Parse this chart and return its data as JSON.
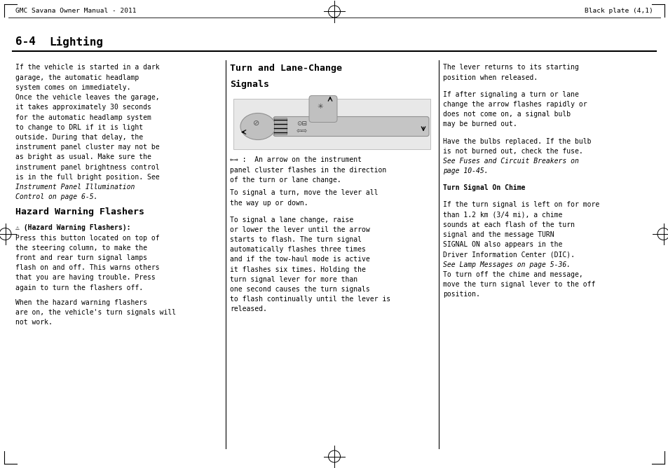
{
  "bg_color": "#ffffff",
  "page_width": 9.54,
  "page_height": 6.68,
  "dpi": 100,
  "header_left": "GMC Savana Owner Manual - 2011",
  "header_right": "Black plate (4,1)",
  "section_num": "6-4",
  "section_name": "Lighting",
  "col1_body": [
    "If the vehicle is started in a dark",
    "garage, the automatic headlamp",
    "system comes on immediately.",
    "Once the vehicle leaves the garage,",
    "it takes approximately 30 seconds",
    "for the automatic headlamp system",
    "to change to DRL if it is light",
    "outside. During that delay, the",
    "instrument panel cluster may not be",
    "as bright as usual. Make sure the",
    "instrument panel brightness control",
    "is in the full bright position. See",
    "Instrument Panel Illumination",
    "Control on page 6-5."
  ],
  "col1_italic_lines": [
    12,
    13
  ],
  "col1_section2_title": "Hazard Warning Flashers",
  "col1_section2_body": [
    "⚠ (Hazard Warning Flashers):",
    "Press this button located on top of",
    "the steering column, to make the",
    "front and rear turn signal lamps",
    "flash on and off. This warns others",
    "that you are having trouble. Press",
    "again to turn the flashers off.",
    "",
    "When the hazard warning flashers",
    "are on, the vehicle's turn signals will",
    "not work."
  ],
  "col2_title_line1": "Turn and Lane-Change",
  "col2_title_line2": "Signals",
  "col2_caption_line1": "⇐⇒ :  An arrow on the instrument",
  "col2_caption_line2": "panel cluster flashes in the direction",
  "col2_caption_line3": "of the turn or lane change.",
  "col2_body": [
    "To signal a turn, move the lever all",
    "the way up or down.",
    "",
    "To signal a lane change, raise",
    "or lower the lever until the arrow",
    "starts to flash. The turn signal",
    "automatically flashes three times",
    "and if the tow-haul mode is active",
    "it flashes six times. Holding the",
    "turn signal lever for more than",
    "one second causes the turn signals",
    "to flash continually until the lever is",
    "released."
  ],
  "col3_body": [
    "The lever returns to its starting",
    "position when released.",
    "",
    "If after signaling a turn or lane",
    "change the arrow flashes rapidly or",
    "does not come on, a signal bulb",
    "may be burned out.",
    "",
    "Have the bulbs replaced. If the bulb",
    "is not burned out, check the fuse.",
    "See Fuses and Circuit Breakers on",
    "page 10-45.",
    "",
    "Turn Signal On Chime",
    "",
    "If the turn signal is left on for more",
    "than 1.2 km (3/4 mi), a chime",
    "sounds at each flash of the turn",
    "signal and the message TURN",
    "SIGNAL ON also appears in the",
    "Driver Information Center (DIC).",
    "See Lamp Messages on page 5-36.",
    "To turn off the chime and message,",
    "move the turn signal lever to the off",
    "position."
  ],
  "col3_bold_lines": [
    13
  ],
  "col3_italic_lines": [
    10,
    11,
    21
  ]
}
